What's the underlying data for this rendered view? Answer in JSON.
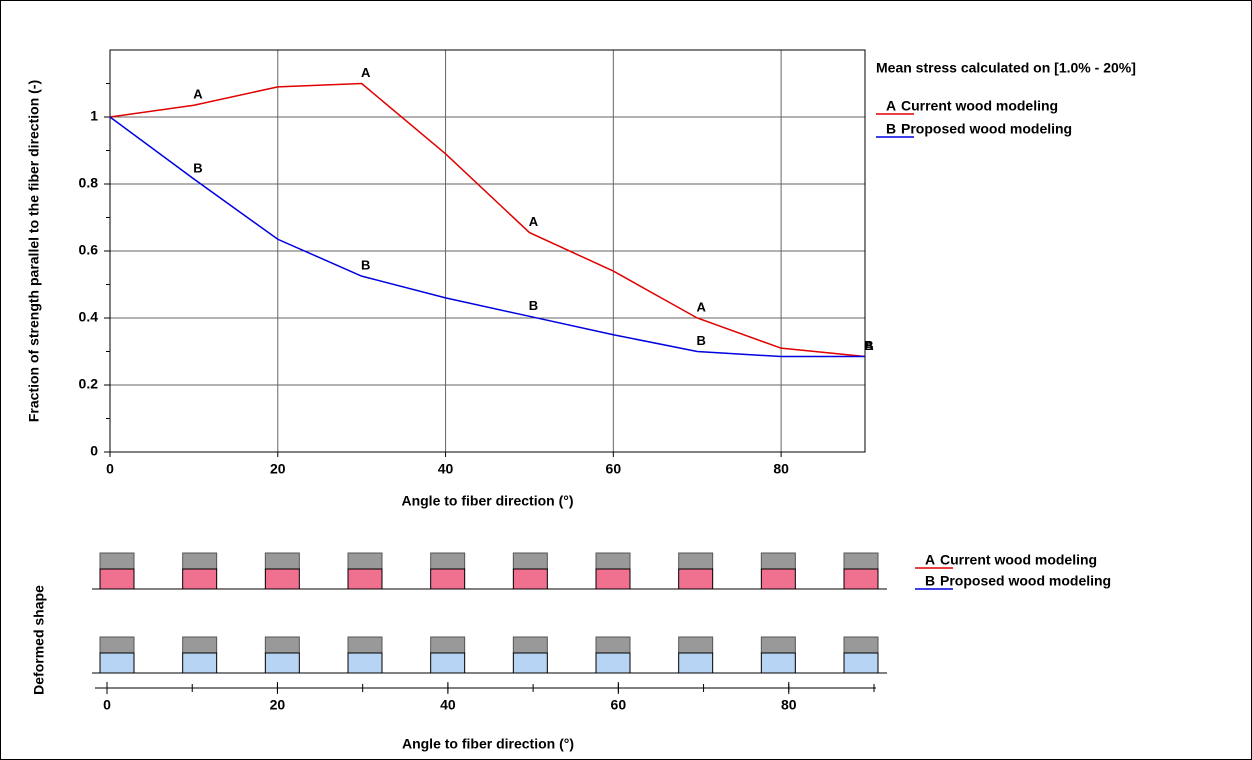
{
  "chart_data": [
    {
      "type": "line",
      "xlabel": "Angle to fiber direction (°)",
      "ylabel": "Fraction of strength parallel to the fiber direction (-)",
      "legend_title": "Mean stress calculated on [1.0% - 20%]",
      "legend": "right",
      "grid": true,
      "x": [
        0,
        10,
        20,
        30,
        40,
        50,
        60,
        70,
        80,
        90
      ],
      "xlim": [
        0,
        90
      ],
      "xticks": [
        0,
        20,
        40,
        60,
        80
      ],
      "ylim": [
        0,
        1.2
      ],
      "yticks": [
        0,
        0.2,
        0.4,
        0.6,
        0.8,
        1
      ],
      "series": [
        {
          "name": "Current wood modeling",
          "marker": "A",
          "color": "#e00000",
          "values": [
            1.0,
            1.035,
            1.09,
            1.1,
            0.89,
            0.655,
            0.54,
            0.4,
            0.31,
            0.285
          ]
        },
        {
          "name": "Proposed wood modeling",
          "marker": "B",
          "color": "#0000e0",
          "values": [
            1.0,
            0.815,
            0.635,
            0.525,
            0.46,
            0.405,
            0.35,
            0.3,
            0.285,
            0.285
          ]
        }
      ]
    },
    {
      "type": "shapes",
      "ylabel": "Deformed shape",
      "xlabel": "Angle to fiber direction (°)",
      "x": [
        0,
        10,
        20,
        30,
        40,
        50,
        60,
        70,
        80,
        90
      ],
      "xlim": [
        0,
        90
      ],
      "xticks": [
        0,
        20,
        40,
        60,
        80
      ],
      "series": [
        {
          "name": "Current wood modeling",
          "marker": "A",
          "color": "#e00000",
          "fill": "#f07090"
        },
        {
          "name": "Proposed wood modeling",
          "marker": "B",
          "color": "#0000e0",
          "fill": "#b8d4f4"
        }
      ]
    }
  ]
}
